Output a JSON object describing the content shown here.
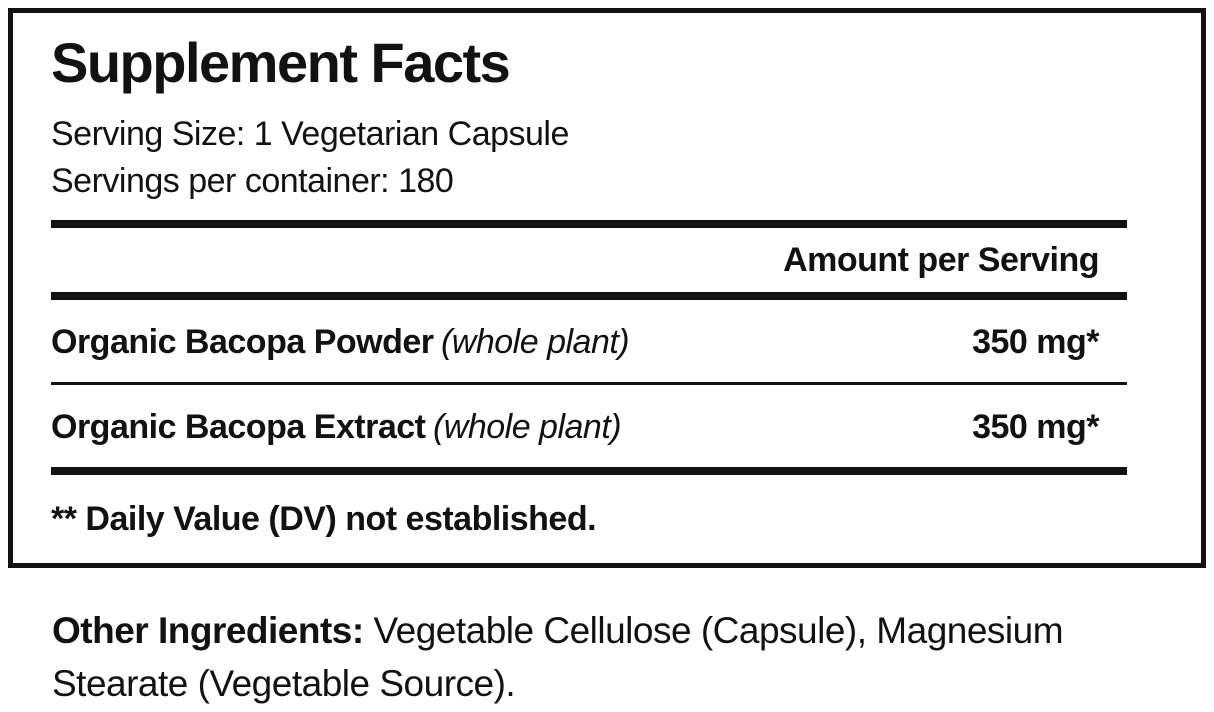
{
  "panel": {
    "title": "Supplement Facts",
    "serving_size_line": "Serving Size: 1 Vegetarian Capsule",
    "servings_per_container_line": "Servings per container: 180",
    "amount_header": "Amount per Serving",
    "rows": [
      {
        "name": "Organic Bacopa Powder",
        "detail": "(whole plant)",
        "amount": "350 mg*"
      },
      {
        "name": "Organic Bacopa Extract",
        "detail": "(whole plant)",
        "amount": "350 mg*"
      }
    ],
    "footnote": "** Daily Value (DV) not established."
  },
  "other_ingredients": {
    "label": "Other Ingredients:",
    "text": " Vegetable Cellulose (Capsule), Magnesium Stearate (Vegetable Source)."
  },
  "colors": {
    "text": "#121212",
    "background": "#ffffff",
    "rule": "#121212"
  }
}
